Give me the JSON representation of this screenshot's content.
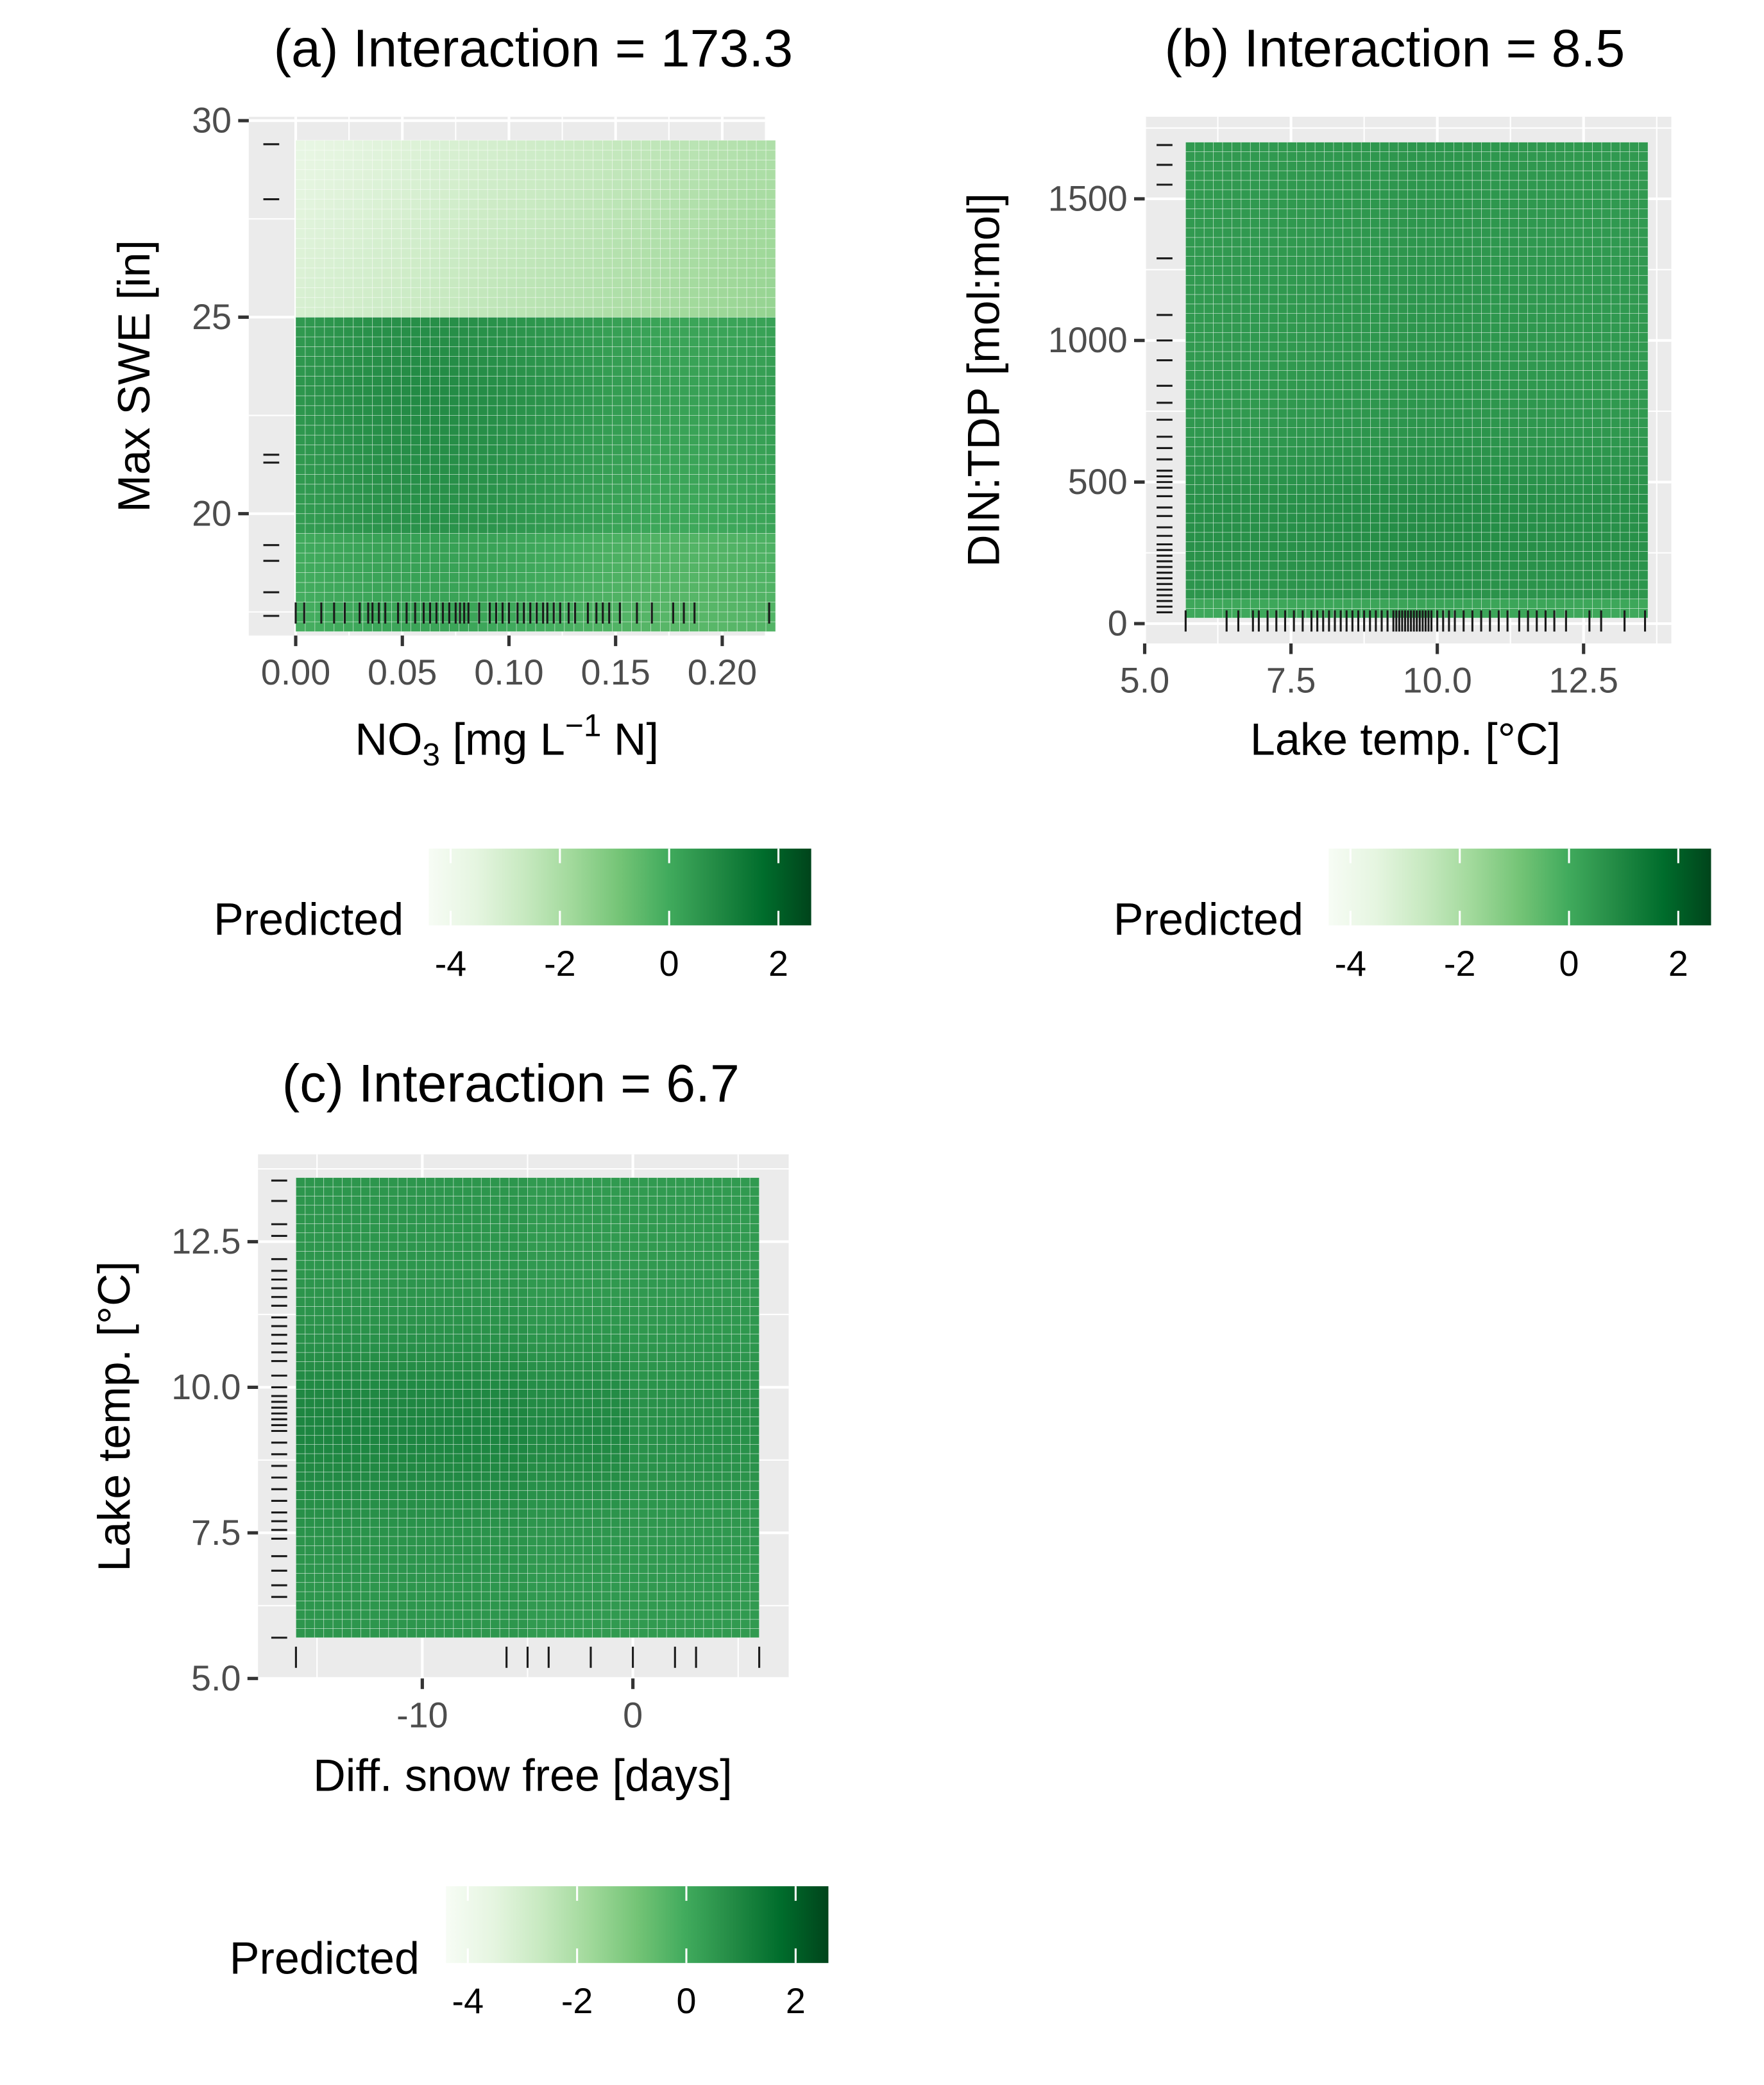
{
  "figure": {
    "colorscale": [
      "#f7fcf5",
      "#e5f5e0",
      "#c7e9c0",
      "#a1d99b",
      "#74c476",
      "#41ab5d",
      "#238b45",
      "#006d2c",
      "#00441b"
    ],
    "panel_background": "#ebebeb",
    "gridline_color": "#ffffff",
    "rug_color": "#1a1a1a"
  },
  "chart_data": [
    {
      "type": "heatmap",
      "title": "(a) Interaction = 173.3",
      "xlabel": "NO",
      "xlabel_sub": "3",
      "xlabel_rest": " [mg L",
      "xlabel_sup": "−1",
      "xlabel_end": " N]",
      "ylabel": "Max SWE [in]",
      "xlim": [
        -0.022,
        0.22
      ],
      "ylim": [
        16.9,
        30.1
      ],
      "xticks": [
        0.0,
        0.05,
        0.1,
        0.15,
        0.2
      ],
      "xtick_labels": [
        "0.00",
        "0.05",
        "0.10",
        "0.15",
        "0.20"
      ],
      "yticks": [
        20,
        25,
        30
      ],
      "ytick_labels": [
        "20",
        "25",
        "30"
      ],
      "x_range": [
        0.0,
        0.225
      ],
      "y_range": [
        17.0,
        29.5
      ],
      "x_steps": 50,
      "y_steps": 50,
      "z_description": "Predicted",
      "x_rug": [
        0.0,
        0.004,
        0.012,
        0.018,
        0.023,
        0.03,
        0.034,
        0.036,
        0.039,
        0.042,
        0.048,
        0.052,
        0.056,
        0.06,
        0.063,
        0.066,
        0.069,
        0.072,
        0.075,
        0.077,
        0.079,
        0.081,
        0.086,
        0.091,
        0.094,
        0.097,
        0.1,
        0.104,
        0.107,
        0.11,
        0.113,
        0.116,
        0.118,
        0.121,
        0.124,
        0.128,
        0.131,
        0.137,
        0.141,
        0.144,
        0.147,
        0.152,
        0.16,
        0.167,
        0.177,
        0.182,
        0.187,
        0.222
      ],
      "y_rug": [
        17.4,
        18.0,
        18.8,
        19.2,
        21.3,
        21.5,
        28.0,
        29.4
      ]
    },
    {
      "type": "heatmap",
      "title": "(b) Interaction = 8.5",
      "xlabel": "Lake temp. [°C]",
      "ylabel": "DIN:TDP [mol:mol]",
      "xlim": [
        5.0,
        14.0
      ],
      "ylim": [
        -70,
        1790
      ],
      "xticks": [
        5.0,
        7.5,
        10.0,
        12.5
      ],
      "xtick_labels": [
        "5.0",
        "7.5",
        "10.0",
        "12.5"
      ],
      "yticks": [
        0,
        500,
        1000,
        1500
      ],
      "ytick_labels": [
        "0",
        "500",
        "1000",
        "1500"
      ],
      "x_range": [
        5.7,
        13.6
      ],
      "y_range": [
        20,
        1700
      ],
      "x_steps": 50,
      "y_steps": 50,
      "z_description": "Predicted",
      "x_rug": [
        5.7,
        6.4,
        6.6,
        6.85,
        6.95,
        7.1,
        7.25,
        7.4,
        7.55,
        7.7,
        7.85,
        7.95,
        8.05,
        8.15,
        8.25,
        8.35,
        8.45,
        8.55,
        8.65,
        8.75,
        8.85,
        8.95,
        9.05,
        9.15,
        9.25,
        9.3,
        9.35,
        9.4,
        9.45,
        9.5,
        9.55,
        9.6,
        9.65,
        9.7,
        9.75,
        9.8,
        9.85,
        9.9,
        10.0,
        10.1,
        10.2,
        10.3,
        10.45,
        10.6,
        10.75,
        10.9,
        11.05,
        11.2,
        11.4,
        11.55,
        11.7,
        11.85,
        12.0,
        12.2,
        12.6,
        12.8,
        13.2,
        13.55
      ],
      "y_rug": [
        40,
        60,
        80,
        100,
        120,
        140,
        160,
        180,
        200,
        220,
        240,
        260,
        280,
        310,
        340,
        380,
        410,
        450,
        480,
        500,
        520,
        540,
        580,
        620,
        660,
        720,
        780,
        840,
        930,
        1000,
        1090,
        1290,
        1550,
        1620,
        1690
      ]
    },
    {
      "type": "heatmap",
      "title": "(c) Interaction = 6.7",
      "xlabel": "Diff. snow free [days]",
      "ylabel": "Lake temp. [°C]",
      "xlim": [
        -17.8,
        7.4
      ],
      "ylim": [
        5.0,
        14.0
      ],
      "xticks": [
        -10,
        0
      ],
      "xtick_labels": [
        "-10",
        "0"
      ],
      "yticks": [
        5.0,
        7.5,
        10.0,
        12.5
      ],
      "ytick_labels": [
        "5.0",
        "7.5",
        "10.0",
        "12.5"
      ],
      "x_range": [
        -16.0,
        6.0
      ],
      "y_range": [
        5.7,
        13.6
      ],
      "x_steps": 50,
      "y_steps": 50,
      "z_description": "Predicted",
      "x_rug": [
        -16,
        -6,
        -5,
        -4,
        -2,
        0,
        2,
        3,
        6
      ],
      "y_rug": [
        5.7,
        6.4,
        6.6,
        6.85,
        7.1,
        7.4,
        7.55,
        7.7,
        7.85,
        8.05,
        8.25,
        8.45,
        8.65,
        8.85,
        9.05,
        9.25,
        9.35,
        9.45,
        9.55,
        9.65,
        9.75,
        9.85,
        10.0,
        10.2,
        10.45,
        10.6,
        10.75,
        10.9,
        11.05,
        11.2,
        11.4,
        11.55,
        11.7,
        11.85,
        12.0,
        12.2,
        12.6,
        12.8,
        13.2,
        13.55
      ]
    }
  ],
  "legends": [
    {
      "title": "Predicted",
      "min": -4.4,
      "max": 2.6,
      "ticks": [
        -4,
        -2,
        0,
        2
      ],
      "tick_labels": [
        "-4",
        "-2",
        "0",
        "2"
      ]
    },
    {
      "title": "Predicted",
      "min": -4.4,
      "max": 2.6,
      "ticks": [
        -4,
        -2,
        0,
        2
      ],
      "tick_labels": [
        "-4",
        "-2",
        "0",
        "2"
      ]
    },
    {
      "title": "Predicted",
      "min": -4.4,
      "max": 2.6,
      "ticks": [
        -4,
        -2,
        0,
        2
      ],
      "tick_labels": [
        "-4",
        "-2",
        "0",
        "2"
      ]
    }
  ]
}
